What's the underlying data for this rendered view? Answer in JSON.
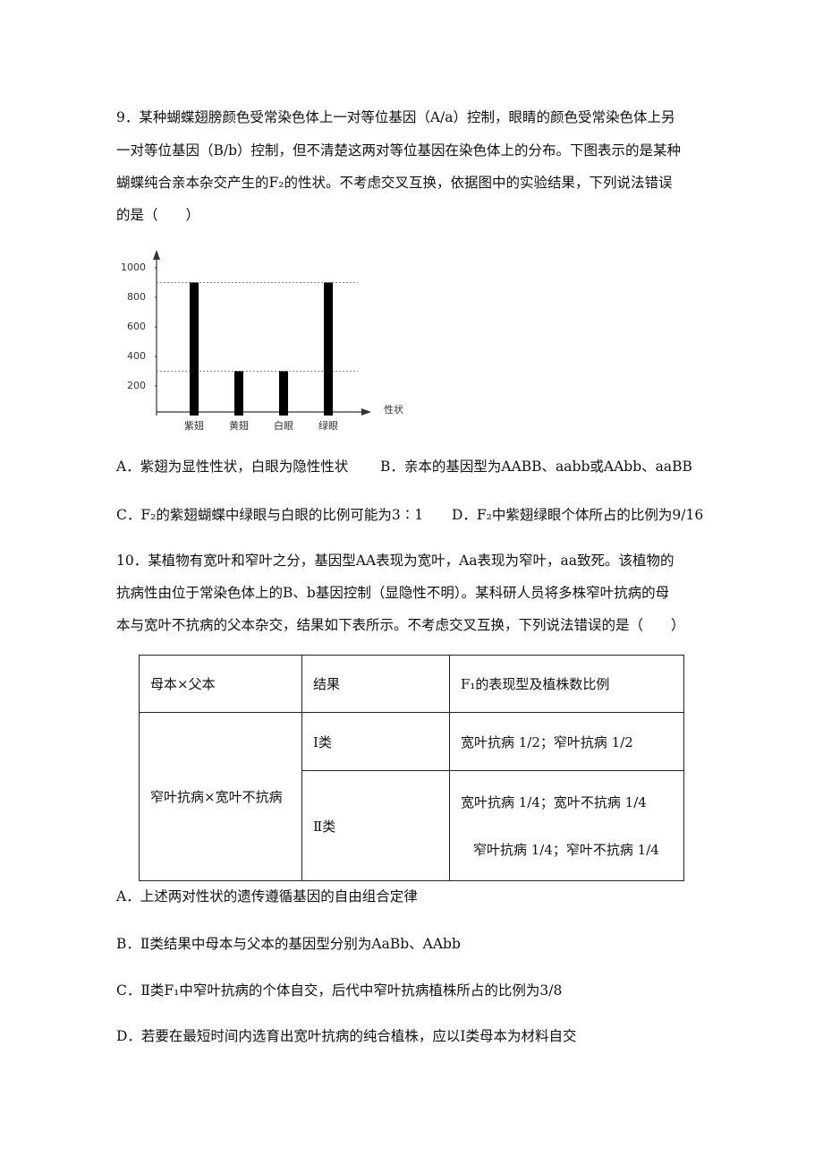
{
  "q9": {
    "stem": [
      "9．某种蝴蝶翅膀颜色受常染色体上一对等位基因（A/a）控制，眼睛的颜色受常染色体上另",
      "一对等位基因（B/b）控制，但不清楚这两对等位基因在染色体上的分布。下图表示的是某种",
      "蝴蝶纯合亲本杂交产生的F₂的性状。不考虑交叉互换，依据图中的实验结果，下列说法错误",
      "的是（　　）"
    ],
    "options": [
      "A．紫翅为显性性状，白眼为隐性性状",
      "B．亲本的基因型为AABB、aabb或AAbb、aaBB",
      "C．F₂的紫翅蝴蝶中绿眼与白眼的比例可能为3∶1",
      "D．F₂中紫翅绿眼个体所占的比例为9/16"
    ]
  },
  "chart_data": {
    "type": "bar",
    "x_label": "性状",
    "categories": [
      "紫翅",
      "黄翅",
      "白眼",
      "绿眼"
    ],
    "values": [
      900,
      300,
      300,
      900
    ],
    "color": "#000000",
    "ylim": [
      0,
      1100
    ],
    "yticks": [
      200,
      400,
      600,
      800,
      1000
    ]
  },
  "q10": {
    "stem": [
      "10．某植物有宽叶和窄叶之分，基因型AA表现为宽叶，Aa表现为窄叶，aa致死。该植物的",
      "抗病性由位于常染色体上的B、b基因控制（显隐性不明）。某科研人员将多株窄叶抗病的母",
      "本与宽叶不抗病的父本杂交，结果如下表所示。不考虑交叉互换，下列说法错误的是（　　）"
    ],
    "table": {
      "header": [
        "母本×父本",
        "结果",
        "F₁的表现型及植株数比例"
      ],
      "cross": "窄叶抗病×宽叶不抗病",
      "rows": [
        {
          "result": "Ⅰ类",
          "ratios": [
            "宽叶抗病 1/2；窄叶抗病 1/2"
          ]
        },
        {
          "result": "Ⅱ类",
          "ratios": [
            "宽叶抗病 1/4；宽叶不抗病 1/4",
            "窄叶抗病 1/4；窄叶不抗病 1/4"
          ]
        }
      ]
    },
    "options": [
      "A．上述两对性状的遗传遵循基因的自由组合定律",
      "B．Ⅱ类结果中母本与父本的基因型分别为AaBb、AAbb",
      "C．Ⅱ类F₁中窄叶抗病的个体自交，后代中窄叶抗病植株所占的比例为3/8",
      "D．若要在最短时间内选育出宽叶抗病的纯合植株，应以Ⅰ类母本为材料自交"
    ]
  }
}
